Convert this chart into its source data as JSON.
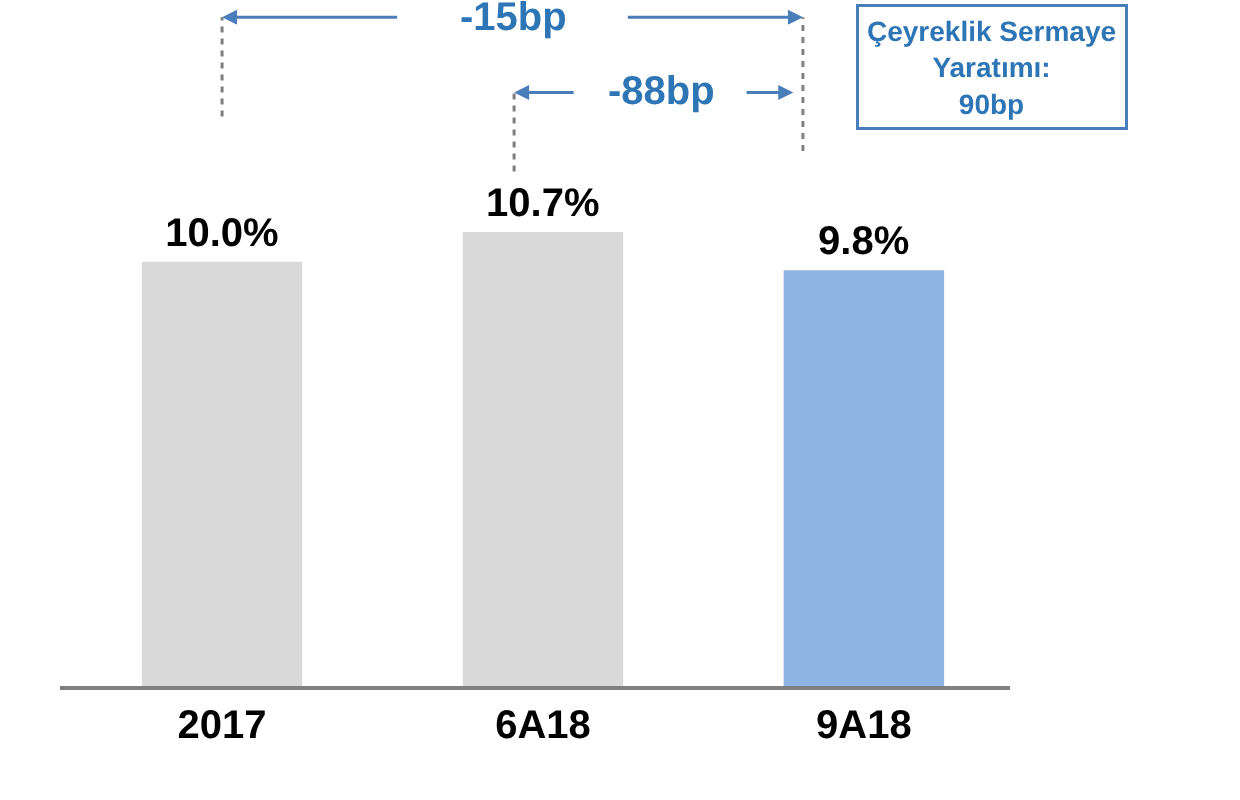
{
  "chart_data": {
    "type": "bar",
    "categories": [
      "2017",
      "6A18",
      "9A18"
    ],
    "values": [
      10.0,
      10.7,
      9.8
    ],
    "colors": [
      "#d9d9d9",
      "#d9d9d9",
      "#8eb4e3"
    ],
    "value_labels": [
      "10.0%",
      "10.7%",
      "9.8%"
    ],
    "annotations": [
      "-15bp",
      "-88bp",
      "Çeyreklik Sermaye Yaratımı: 90bp"
    ],
    "data_labels": false
  }
}
